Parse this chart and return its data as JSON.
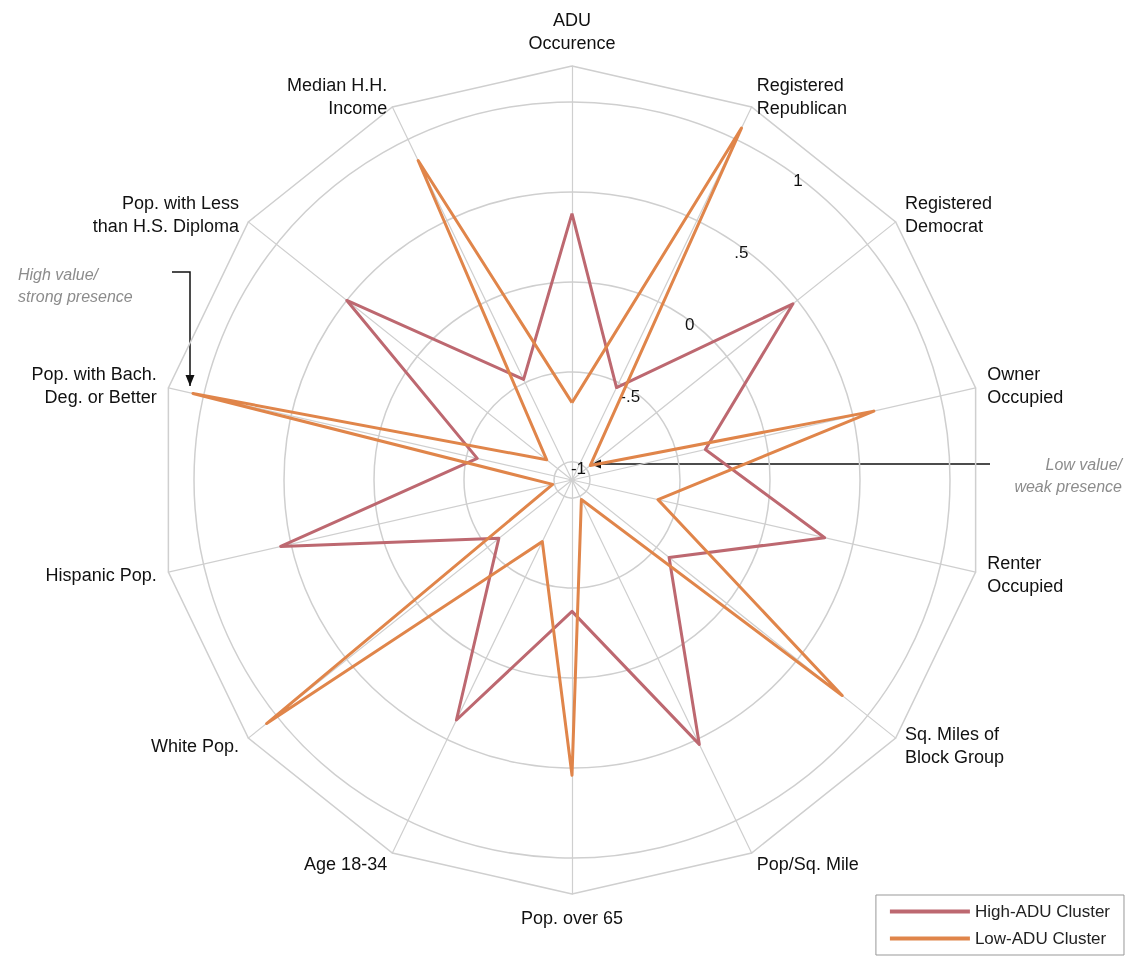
{
  "chart_data": {
    "type": "radar",
    "categories": [
      "ADU\nOccurence",
      "Registered\nRepublican",
      "Registered\nDemocrat",
      "Owner\nOccupied",
      "Renter\nOccupied",
      "Sq. Miles of\nBlock Group",
      "Pop/Sq. Mile",
      "Pop. over 65",
      "Age 18-34",
      "White Pop.",
      "Hispanic Pop.",
      "Pop. with Bach.\nDeg. or Better",
      "Pop. with Less\nthan H.S. Diploma",
      "Median H.H.\nIncome"
    ],
    "series": [
      {
        "name": "High-ADU Cluster",
        "color": "#bd6870",
        "values": [
          0.38,
          -0.53,
          0.47,
          -0.34,
          0.34,
          -0.41,
          0.53,
          -0.37,
          0.38,
          -0.58,
          0.56,
          -0.56,
          0.5,
          -0.48
        ]
      },
      {
        "name": "Low-ADU Cluster",
        "color": "#e0854a",
        "values": [
          -0.67,
          1.07,
          -0.97,
          0.62,
          -0.61,
          0.82,
          -0.98,
          0.54,
          -0.72,
          1.07,
          -0.99,
          1.06,
          -0.92,
          0.87
        ]
      }
    ],
    "ylim": [
      -1.1,
      1.2
    ],
    "yticks": [
      -1,
      {
        "value": -0.5,
        "label": "-.5"
      },
      0,
      {
        "value": 0.5,
        "label": ".5"
      },
      1
    ],
    "grid": true,
    "legend": "bottom right",
    "marker": "none",
    "line_style": "solid",
    "annotations": [
      "High value/\nstrong presence",
      "Low value/\nweak presence"
    ]
  }
}
